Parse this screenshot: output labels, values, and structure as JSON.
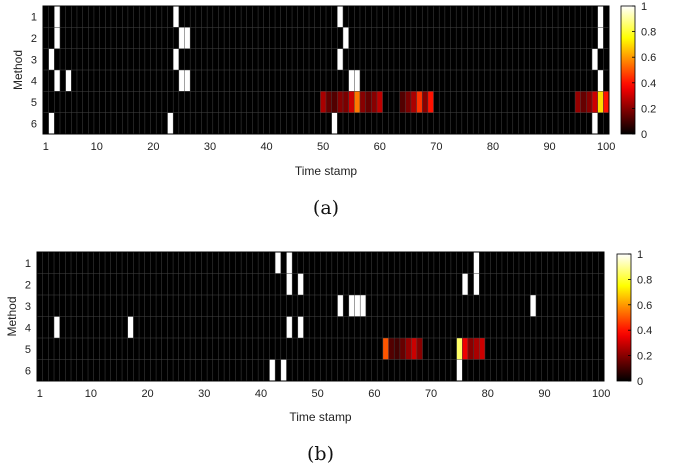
{
  "chart_data": [
    {
      "type": "heatmap",
      "panel_label": "(a)",
      "xlabel": "Time stamp",
      "ylabel": "Method",
      "x_range": [
        1,
        100
      ],
      "x_ticks": [
        1,
        10,
        20,
        30,
        40,
        50,
        60,
        70,
        80,
        90,
        100
      ],
      "rows": [
        1,
        2,
        3,
        4,
        5,
        6
      ],
      "colorbar": {
        "min": 0,
        "max": 1,
        "ticks": [
          0,
          0.2,
          0.4,
          0.6,
          0.8,
          1
        ],
        "colormap": "hot"
      },
      "cells": [
        {
          "row": 1,
          "t": 3,
          "v": 1
        },
        {
          "row": 1,
          "t": 24,
          "v": 1
        },
        {
          "row": 1,
          "t": 53,
          "v": 1
        },
        {
          "row": 1,
          "t": 99,
          "v": 1
        },
        {
          "row": 2,
          "t": 3,
          "v": 1
        },
        {
          "row": 2,
          "t": 25,
          "v": 1
        },
        {
          "row": 2,
          "t": 26,
          "v": 1
        },
        {
          "row": 2,
          "t": 54,
          "v": 1
        },
        {
          "row": 2,
          "t": 99,
          "v": 1
        },
        {
          "row": 3,
          "t": 2,
          "v": 1
        },
        {
          "row": 3,
          "t": 24,
          "v": 1
        },
        {
          "row": 3,
          "t": 53,
          "v": 1
        },
        {
          "row": 3,
          "t": 98,
          "v": 1
        },
        {
          "row": 4,
          "t": 3,
          "v": 1
        },
        {
          "row": 4,
          "t": 5,
          "v": 1
        },
        {
          "row": 4,
          "t": 25,
          "v": 1
        },
        {
          "row": 4,
          "t": 26,
          "v": 1
        },
        {
          "row": 4,
          "t": 55,
          "v": 1
        },
        {
          "row": 4,
          "t": 56,
          "v": 1
        },
        {
          "row": 4,
          "t": 99,
          "v": 1
        },
        {
          "row": 5,
          "t": 50,
          "v": 0.25
        },
        {
          "row": 5,
          "t": 51,
          "v": 0.15
        },
        {
          "row": 5,
          "t": 52,
          "v": 0.12
        },
        {
          "row": 5,
          "t": 53,
          "v": 0.2
        },
        {
          "row": 5,
          "t": 54,
          "v": 0.18
        },
        {
          "row": 5,
          "t": 55,
          "v": 0.3
        },
        {
          "row": 5,
          "t": 56,
          "v": 0.55
        },
        {
          "row": 5,
          "t": 57,
          "v": 0.2
        },
        {
          "row": 5,
          "t": 58,
          "v": 0.15
        },
        {
          "row": 5,
          "t": 59,
          "v": 0.2
        },
        {
          "row": 5,
          "t": 60,
          "v": 0.28
        },
        {
          "row": 5,
          "t": 64,
          "v": 0.12
        },
        {
          "row": 5,
          "t": 65,
          "v": 0.18
        },
        {
          "row": 5,
          "t": 66,
          "v": 0.25
        },
        {
          "row": 5,
          "t": 67,
          "v": 0.45
        },
        {
          "row": 5,
          "t": 68,
          "v": 0.2
        },
        {
          "row": 5,
          "t": 69,
          "v": 0.4
        },
        {
          "row": 5,
          "t": 95,
          "v": 0.22
        },
        {
          "row": 5,
          "t": 96,
          "v": 0.15
        },
        {
          "row": 5,
          "t": 97,
          "v": 0.2
        },
        {
          "row": 5,
          "t": 98,
          "v": 0.3
        },
        {
          "row": 5,
          "t": 99,
          "v": 0.7
        },
        {
          "row": 5,
          "t": 100,
          "v": 0.4
        },
        {
          "row": 6,
          "t": 2,
          "v": 1
        },
        {
          "row": 6,
          "t": 23,
          "v": 1
        },
        {
          "row": 6,
          "t": 52,
          "v": 1
        },
        {
          "row": 6,
          "t": 98,
          "v": 1
        }
      ]
    },
    {
      "type": "heatmap",
      "panel_label": "(b)",
      "xlabel": "Time stamp",
      "ylabel": "Method",
      "x_range": [
        1,
        100
      ],
      "x_ticks": [
        1,
        10,
        20,
        30,
        40,
        50,
        60,
        70,
        80,
        90,
        100
      ],
      "rows": [
        1,
        2,
        3,
        4,
        5,
        6
      ],
      "colorbar": {
        "min": 0,
        "max": 1,
        "ticks": [
          0,
          0.2,
          0.4,
          0.6,
          0.8,
          1
        ],
        "colormap": "hot"
      },
      "cells": [
        {
          "row": 1,
          "t": 43,
          "v": 1
        },
        {
          "row": 1,
          "t": 45,
          "v": 1
        },
        {
          "row": 1,
          "t": 78,
          "v": 1
        },
        {
          "row": 2,
          "t": 45,
          "v": 1
        },
        {
          "row": 2,
          "t": 47,
          "v": 1
        },
        {
          "row": 2,
          "t": 76,
          "v": 1
        },
        {
          "row": 2,
          "t": 78,
          "v": 1
        },
        {
          "row": 3,
          "t": 54,
          "v": 1
        },
        {
          "row": 3,
          "t": 56,
          "v": 1
        },
        {
          "row": 3,
          "t": 57,
          "v": 1
        },
        {
          "row": 3,
          "t": 58,
          "v": 1
        },
        {
          "row": 3,
          "t": 88,
          "v": 1
        },
        {
          "row": 4,
          "t": 4,
          "v": 1
        },
        {
          "row": 4,
          "t": 17,
          "v": 1
        },
        {
          "row": 4,
          "t": 45,
          "v": 1
        },
        {
          "row": 4,
          "t": 47,
          "v": 1
        },
        {
          "row": 5,
          "t": 62,
          "v": 0.5
        },
        {
          "row": 5,
          "t": 63,
          "v": 0.12
        },
        {
          "row": 5,
          "t": 64,
          "v": 0.1
        },
        {
          "row": 5,
          "t": 65,
          "v": 0.15
        },
        {
          "row": 5,
          "t": 66,
          "v": 0.22
        },
        {
          "row": 5,
          "t": 67,
          "v": 0.3
        },
        {
          "row": 5,
          "t": 68,
          "v": 0.2
        },
        {
          "row": 5,
          "t": 75,
          "v": 0.85
        },
        {
          "row": 5,
          "t": 76,
          "v": 0.35
        },
        {
          "row": 5,
          "t": 77,
          "v": 0.2
        },
        {
          "row": 5,
          "t": 78,
          "v": 0.25
        },
        {
          "row": 5,
          "t": 79,
          "v": 0.3
        },
        {
          "row": 6,
          "t": 42,
          "v": 1
        },
        {
          "row": 6,
          "t": 44,
          "v": 1
        },
        {
          "row": 6,
          "t": 75,
          "v": 1
        }
      ]
    }
  ]
}
